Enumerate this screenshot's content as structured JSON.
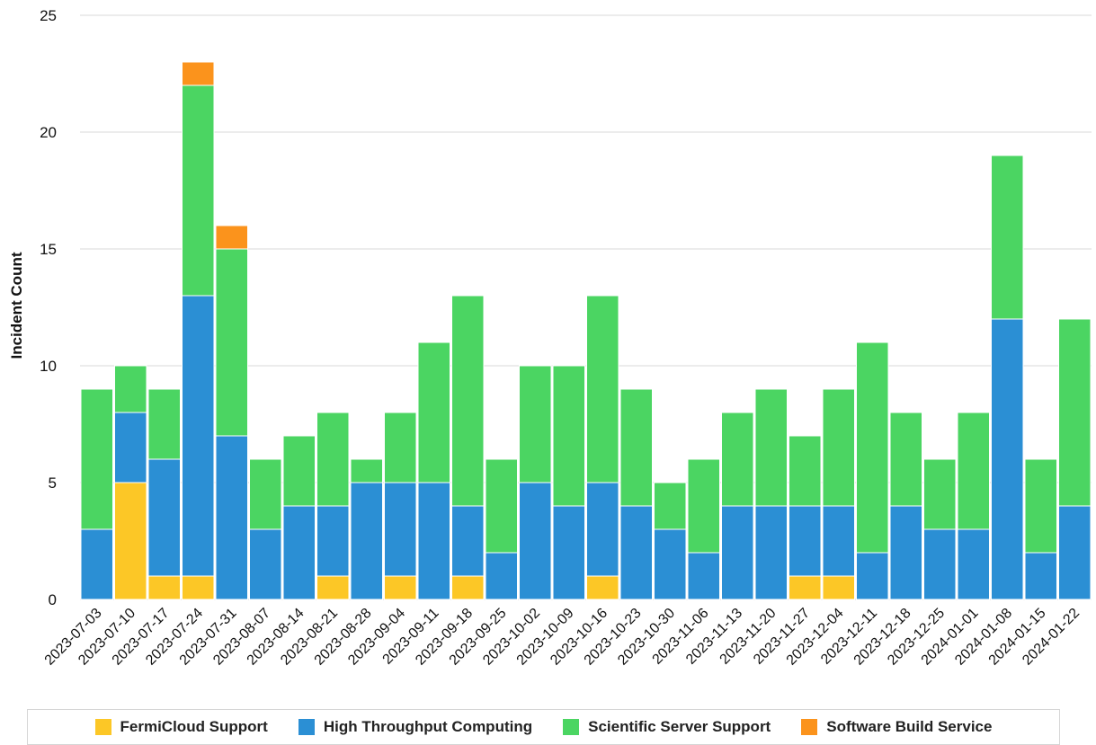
{
  "chart_data": {
    "type": "bar",
    "stacked": true,
    "ylabel": "Incident Count",
    "xlabel": "",
    "ylim": [
      0,
      25
    ],
    "yticks": [
      0,
      5,
      10,
      15,
      20,
      25
    ],
    "grid": true,
    "legend_position": "bottom",
    "categories": [
      "2023-07-03",
      "2023-07-10",
      "2023-07-17",
      "2023-07-24",
      "2023-07-31",
      "2023-08-07",
      "2023-08-14",
      "2023-08-21",
      "2023-08-28",
      "2023-09-04",
      "2023-09-11",
      "2023-09-18",
      "2023-09-25",
      "2023-10-02",
      "2023-10-09",
      "2023-10-16",
      "2023-10-23",
      "2023-10-30",
      "2023-11-06",
      "2023-11-13",
      "2023-11-20",
      "2023-11-27",
      "2023-12-04",
      "2023-12-11",
      "2023-12-18",
      "2023-12-25",
      "2024-01-01",
      "2024-01-08",
      "2024-01-15",
      "2024-01-22"
    ],
    "series": [
      {
        "name": "FermiCloud Support",
        "color": "#fcc726",
        "values": [
          0,
          5,
          1,
          1,
          0,
          0,
          0,
          1,
          0,
          1,
          0,
          1,
          0,
          0,
          0,
          1,
          0,
          0,
          0,
          0,
          0,
          1,
          1,
          0,
          0,
          0,
          0,
          0,
          0,
          0
        ]
      },
      {
        "name": "High Throughput Computing",
        "color": "#2b8fd4",
        "values": [
          3,
          3,
          5,
          12,
          7,
          3,
          4,
          3,
          5,
          4,
          5,
          3,
          2,
          5,
          4,
          4,
          4,
          3,
          2,
          4,
          4,
          3,
          3,
          2,
          4,
          3,
          3,
          12,
          2,
          4
        ]
      },
      {
        "name": "Scientific Server Support",
        "color": "#4bd562",
        "values": [
          6,
          2,
          3,
          9,
          8,
          3,
          3,
          4,
          1,
          3,
          6,
          9,
          4,
          5,
          6,
          8,
          5,
          2,
          4,
          4,
          5,
          3,
          5,
          9,
          4,
          3,
          5,
          7,
          4,
          8
        ]
      },
      {
        "name": "Software Build Service",
        "color": "#fb931c",
        "values": [
          0,
          0,
          0,
          1,
          1,
          0,
          0,
          0,
          0,
          0,
          0,
          0,
          0,
          0,
          0,
          0,
          0,
          0,
          0,
          0,
          0,
          0,
          0,
          0,
          0,
          0,
          0,
          0,
          0,
          0
        ]
      }
    ]
  }
}
